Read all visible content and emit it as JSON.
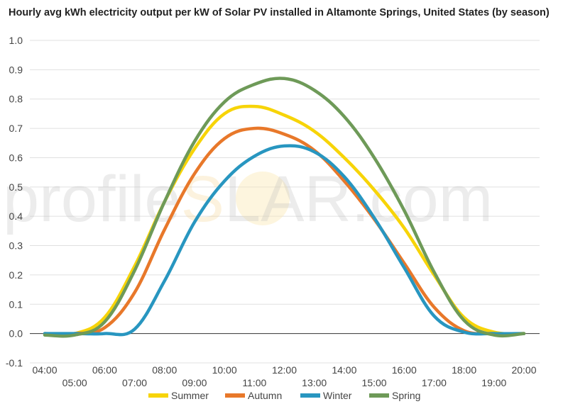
{
  "chart_data": {
    "type": "line",
    "title": "Hourly avg kWh electricity output per kW of Solar PV installed in Altamonte Springs, United States (by season)",
    "xlabel": "",
    "ylabel": "",
    "ylim": [
      -0.1,
      1.0
    ],
    "yticks": [
      "-0.1",
      "0.0",
      "0.1",
      "0.2",
      "0.3",
      "0.4",
      "0.5",
      "0.6",
      "0.7",
      "0.8",
      "0.9",
      "1.0"
    ],
    "x": [
      "04:00",
      "05:00",
      "06:00",
      "07:00",
      "08:00",
      "09:00",
      "10:00",
      "11:00",
      "12:00",
      "13:00",
      "14:00",
      "15:00",
      "16:00",
      "17:00",
      "18:00",
      "19:00",
      "20:00"
    ],
    "grid": true,
    "legend_position": "bottom",
    "series": [
      {
        "name": "Summer",
        "color": "#f7d408",
        "values": [
          0,
          0,
          0.055,
          0.23,
          0.45,
          0.63,
          0.75,
          0.775,
          0.745,
          0.69,
          0.6,
          0.49,
          0.36,
          0.2,
          0.055,
          0.005,
          0
        ]
      },
      {
        "name": "Autumn",
        "color": "#e8782a",
        "values": [
          0,
          0,
          0.02,
          0.14,
          0.355,
          0.545,
          0.665,
          0.7,
          0.68,
          0.625,
          0.52,
          0.39,
          0.24,
          0.09,
          0.01,
          0,
          0
        ]
      },
      {
        "name": "Winter",
        "color": "#2896c0",
        "values": [
          0,
          0,
          0,
          0.015,
          0.18,
          0.38,
          0.52,
          0.605,
          0.64,
          0.62,
          0.535,
          0.395,
          0.225,
          0.06,
          0.005,
          0,
          0
        ]
      },
      {
        "name": "Spring",
        "color": "#6e9a58",
        "values": [
          -0.005,
          -0.005,
          0.04,
          0.215,
          0.45,
          0.655,
          0.79,
          0.85,
          0.87,
          0.83,
          0.74,
          0.6,
          0.42,
          0.21,
          0.045,
          -0.005,
          0
        ]
      }
    ]
  },
  "watermark": {
    "left": "profile",
    "sun": "S",
    "right": "LAR.com"
  }
}
